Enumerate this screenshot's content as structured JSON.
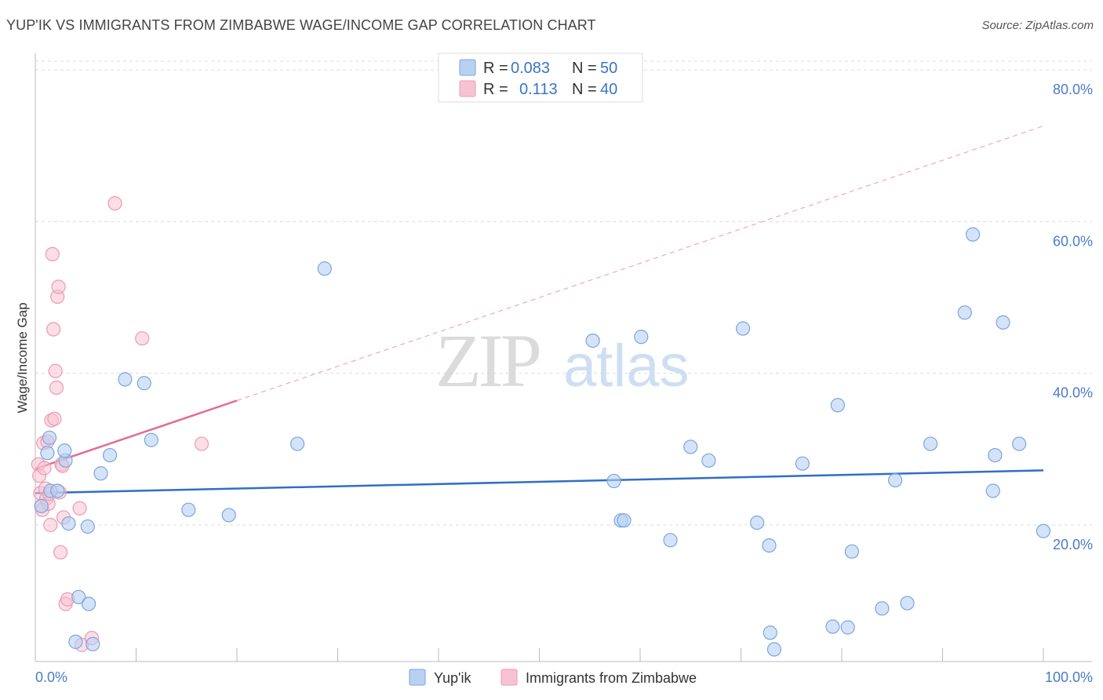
{
  "header": {
    "title": "YUP'IK VS IMMIGRANTS FROM ZIMBABWE WAGE/INCOME GAP CORRELATION CHART",
    "source": "Source: ZipAtlas.com"
  },
  "watermark": {
    "zip": "ZIP",
    "atlas": "atlas"
  },
  "chart_data": {
    "type": "scatter",
    "title": "YUP'IK VS IMMIGRANTS FROM ZIMBABWE WAGE/INCOME GAP CORRELATION CHART",
    "xlabel": "",
    "ylabel": "Wage/Income Gap",
    "xlim": [
      0,
      100
    ],
    "ylim": [
      2,
      83
    ],
    "x_tick_labels": [
      "0.0%",
      "100.0%"
    ],
    "y_ticks": [
      20,
      40,
      60,
      80
    ],
    "y_tick_labels": [
      "20.0%",
      "40.0%",
      "60.0%",
      "80.0%"
    ],
    "grid": true,
    "legend_position": "top-center",
    "colors": {
      "yupik_fill": "#b8d1f3",
      "yupik_stroke": "#7aa6de",
      "yupik_line": "#2f6fc6",
      "zimbabwe_fill": "#f7c3d2",
      "zimbabwe_stroke": "#ec9ab3",
      "zimbabwe_line": "#e26d96",
      "grid": "#dddddd",
      "tick_label": "#4a7cc9"
    },
    "stats": [
      {
        "series": "Yup'ik",
        "r_label": "R =",
        "r": "0.083",
        "n_label": "N =",
        "n": "50"
      },
      {
        "series": "Immigrants from Zimbabwe",
        "r_label": "R =",
        "r": "0.113",
        "n_label": "N =",
        "n": "40"
      }
    ],
    "series": [
      {
        "name": "Yup'ik",
        "trend": {
          "x": [
            0,
            100
          ],
          "y": [
            24.2,
            27.2
          ],
          "style": "solid"
        },
        "points": [
          [
            0.6,
            22.5
          ],
          [
            1.2,
            29.5
          ],
          [
            1.5,
            24.5
          ],
          [
            1.4,
            31.5
          ],
          [
            2.2,
            24.5
          ],
          [
            3.0,
            28.5
          ],
          [
            2.9,
            29.8
          ],
          [
            3.3,
            20.2
          ],
          [
            4.0,
            4.6
          ],
          [
            4.3,
            10.5
          ],
          [
            5.2,
            19.8
          ],
          [
            5.3,
            9.6
          ],
          [
            5.7,
            4.3
          ],
          [
            6.5,
            26.8
          ],
          [
            7.4,
            29.2
          ],
          [
            8.9,
            39.2
          ],
          [
            10.8,
            38.7
          ],
          [
            11.5,
            31.2
          ],
          [
            15.2,
            22.0
          ],
          [
            19.2,
            21.3
          ],
          [
            26.0,
            30.7
          ],
          [
            28.7,
            53.8
          ],
          [
            55.3,
            44.3
          ],
          [
            57.4,
            25.8
          ],
          [
            58.1,
            20.6
          ],
          [
            58.4,
            20.6
          ],
          [
            60.1,
            44.8
          ],
          [
            63.0,
            18.0
          ],
          [
            65.0,
            30.3
          ],
          [
            66.8,
            28.5
          ],
          [
            70.2,
            45.9
          ],
          [
            71.6,
            20.3
          ],
          [
            72.8,
            17.3
          ],
          [
            72.9,
            5.8
          ],
          [
            73.3,
            3.6
          ],
          [
            76.1,
            28.1
          ],
          [
            79.1,
            6.6
          ],
          [
            79.6,
            35.8
          ],
          [
            80.6,
            6.5
          ],
          [
            81.0,
            16.5
          ],
          [
            84.0,
            9.0
          ],
          [
            85.3,
            25.9
          ],
          [
            86.5,
            9.7
          ],
          [
            88.8,
            30.7
          ],
          [
            92.2,
            48.0
          ],
          [
            93.0,
            58.3
          ],
          [
            95.0,
            24.5
          ],
          [
            95.2,
            29.2
          ],
          [
            96.0,
            46.7
          ],
          [
            97.6,
            30.7
          ],
          [
            100.0,
            19.2
          ]
        ]
      },
      {
        "name": "Immigrants from Zimbabwe",
        "trend": {
          "x": [
            0,
            20
          ],
          "y": [
            27.4,
            36.4
          ],
          "style": "solid",
          "extended": {
            "x": [
              20,
              100
            ],
            "y": [
              36.4,
              72.6
            ],
            "style": "dashed"
          }
        },
        "points": [
          [
            0.3,
            28.0
          ],
          [
            0.4,
            26.5
          ],
          [
            0.5,
            24.2
          ],
          [
            0.6,
            22.5
          ],
          [
            0.7,
            22.0
          ],
          [
            0.8,
            30.8
          ],
          [
            0.9,
            27.5
          ],
          [
            1.0,
            24.8
          ],
          [
            1.1,
            23.5
          ],
          [
            1.2,
            31.0
          ],
          [
            1.3,
            22.8
          ],
          [
            1.4,
            24.1
          ],
          [
            1.5,
            20.0
          ],
          [
            1.6,
            33.8
          ],
          [
            1.7,
            55.7
          ],
          [
            1.8,
            45.8
          ],
          [
            1.9,
            34.0
          ],
          [
            2.0,
            40.3
          ],
          [
            2.1,
            38.1
          ],
          [
            2.2,
            50.1
          ],
          [
            2.3,
            51.4
          ],
          [
            2.4,
            24.3
          ],
          [
            2.5,
            16.4
          ],
          [
            2.6,
            28.0
          ],
          [
            2.7,
            27.8
          ],
          [
            2.8,
            21.0
          ],
          [
            3.0,
            9.6
          ],
          [
            3.2,
            10.2
          ],
          [
            4.4,
            22.2
          ],
          [
            4.6,
            4.2
          ],
          [
            5.6,
            5.1
          ],
          [
            7.9,
            62.4
          ],
          [
            10.6,
            44.6
          ],
          [
            16.5,
            30.7
          ]
        ]
      }
    ]
  },
  "legend": {
    "items": [
      {
        "label": "Yup'ik"
      },
      {
        "label": "Immigrants from Zimbabwe"
      }
    ]
  }
}
